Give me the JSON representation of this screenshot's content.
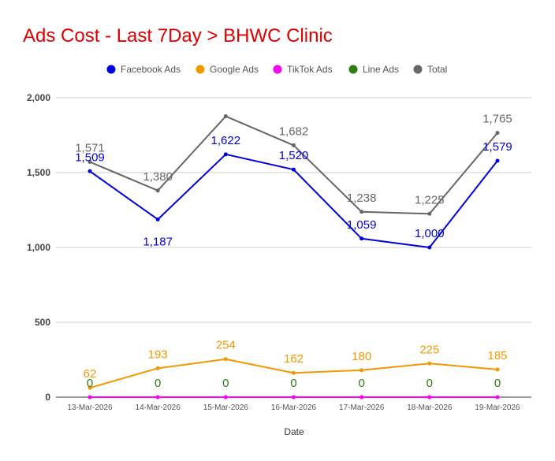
{
  "chart_data": {
    "type": "line",
    "title": "Ads Cost - Last 7Day > BHWC Clinic",
    "xlabel": "Date",
    "ylabel": "",
    "ylim": [
      0,
      2000
    ],
    "yticks": [
      0,
      500,
      1000,
      1500,
      2000
    ],
    "ytick_labels": [
      "0",
      "500",
      "1,000",
      "1,500",
      "2,000"
    ],
    "grid": true,
    "legend_position": "top",
    "categories": [
      "13-Mar-2026",
      "14-Mar-2026",
      "15-Mar-2026",
      "16-Mar-2026",
      "17-Mar-2026",
      "18-Mar-2026",
      "19-Mar-2026"
    ],
    "series": [
      {
        "name": "Facebook Ads",
        "color": "#0000dd",
        "values": [
          1509,
          1187,
          1622,
          1520,
          1059,
          1000,
          1579
        ],
        "labels": [
          "1,509",
          "1,187",
          "1,622",
          "1,520",
          "1,059",
          "1,000",
          "1,579"
        ]
      },
      {
        "name": "Google Ads",
        "color": "#f29900",
        "values": [
          62,
          193,
          254,
          162,
          180,
          225,
          185
        ],
        "labels": [
          "62",
          "193",
          "254",
          "162",
          "180",
          "225",
          "185"
        ]
      },
      {
        "name": "TikTok Ads",
        "color": "#ff00ff",
        "values": [
          0,
          0,
          0,
          0,
          0,
          0,
          0
        ],
        "labels": []
      },
      {
        "name": "Line Ads",
        "color": "#2e7d12",
        "values": [
          0,
          0,
          0,
          0,
          0,
          0,
          0
        ],
        "labels": [
          "0",
          "0",
          "0",
          "0",
          "0",
          "0",
          "0"
        ]
      },
      {
        "name": "Total",
        "color": "#666666",
        "values": [
          1571,
          1380,
          1876,
          1682,
          1238,
          1225,
          1765
        ],
        "labels": [
          "1,571",
          "1,380",
          "",
          "1,682",
          "1,238",
          "1,225",
          "1,765"
        ]
      }
    ]
  }
}
